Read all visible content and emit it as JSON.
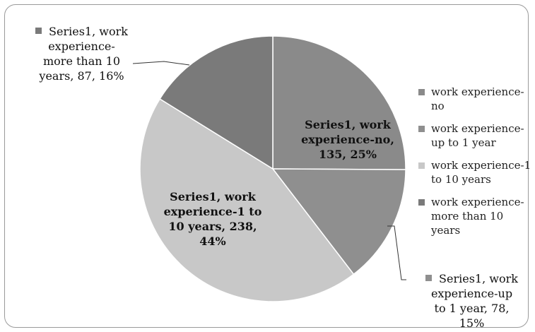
{
  "chart_data": {
    "type": "pie",
    "series_name": "Series1",
    "categories": [
      "work experience-no",
      "work experience-up to 1 year",
      "work experience-1 to 10 years",
      "work experience-more than 10 years"
    ],
    "values": [
      135,
      78,
      238,
      87
    ],
    "percents": [
      "25%",
      "15%",
      "44%",
      "16%"
    ],
    "colors": [
      "#8a8a8a",
      "#8f8f8f",
      "#c8c8c8",
      "#7a7a7a"
    ],
    "legend_position": "right",
    "legend": [
      "work experience-no",
      "work experience-up to 1 year",
      "work experience-1 to 10 years",
      "work experience-more than 10 years"
    ],
    "data_labels": [
      [
        "Series1, work",
        "experience-no,",
        "135, 25%"
      ],
      [
        "Series1, work",
        "experience-up",
        "to 1 year, 78,",
        "15%"
      ],
      [
        "Series1, work",
        "experience-1 to",
        "10 years, 238,",
        "44%"
      ],
      [
        "Series1, work",
        "experience-",
        "more than 10",
        "years, 87, 16%"
      ]
    ]
  }
}
